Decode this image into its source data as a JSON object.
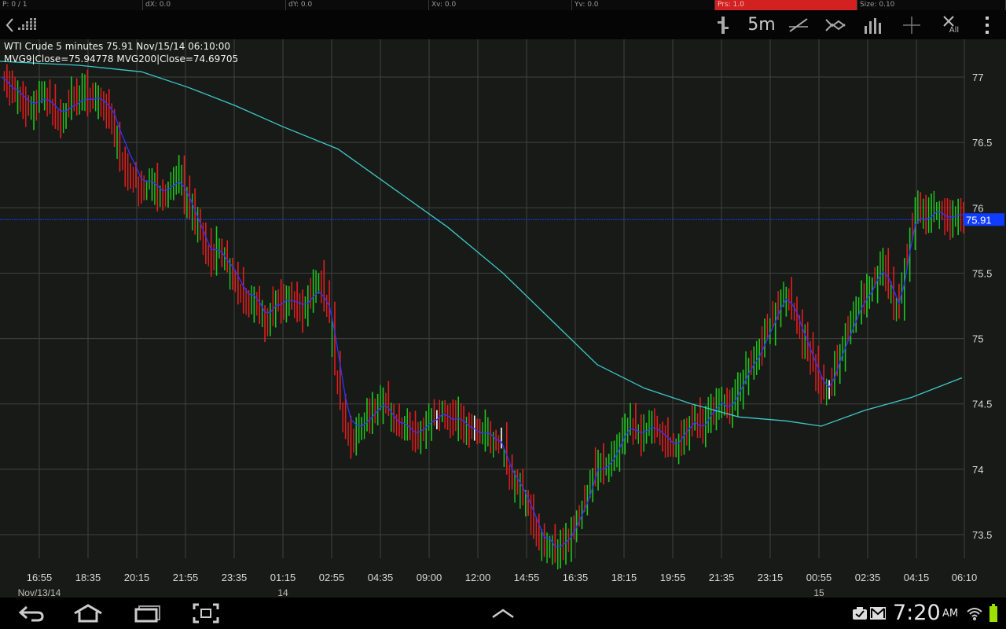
{
  "status_line": {
    "cells": [
      {
        "text": "P: 0 / 1",
        "highlight": false
      },
      {
        "text": "dX: 0.0",
        "highlight": false
      },
      {
        "text": "dY: 0.0",
        "highlight": false
      },
      {
        "text": "Xv: 0.0",
        "highlight": false
      },
      {
        "text": "Yv: 0.0",
        "highlight": false
      },
      {
        "text": "Prs: 1.0",
        "highlight": true
      },
      {
        "text": "Size: 0.10",
        "highlight": false
      }
    ]
  },
  "toolbar": {
    "timeframe_label": "5m",
    "all_label": "All",
    "icons": [
      "back-icon",
      "grid-logo-icon",
      "candle-type-icon",
      "trendline-icon",
      "cross-lines-icon",
      "volume-bars-icon",
      "crosshair-icon",
      "close-all-icon",
      "overflow-menu-icon"
    ]
  },
  "chart_info": {
    "line1": "WTI Crude 5 minutes 75.91 Nov/15/14 06:10:00",
    "line2": "MVG9|Close=75.94778 MVG200|Close=74.69705"
  },
  "chart_data": {
    "type": "line",
    "title": "WTI Crude 5 minutes 75.91 Nov/15/14 06:10:00",
    "y_ticks": [
      77,
      76.5,
      76,
      75.5,
      75,
      74.5,
      74,
      73.5
    ],
    "ylim": [
      73.3,
      77.3
    ],
    "x_ticks": [
      "16:55",
      "18:35",
      "20:15",
      "21:55",
      "23:35",
      "01:15",
      "02:55",
      "04:35",
      "09:00",
      "12:00",
      "14:55",
      "16:35",
      "18:15",
      "19:55",
      "21:35",
      "23:15",
      "00:55",
      "02:35",
      "04:15",
      "06:10"
    ],
    "date_labels": [
      {
        "text": "Nov/13/14",
        "at": "16:55"
      },
      {
        "text": "14",
        "at": "01:15"
      },
      {
        "text": "15",
        "at": "00:55"
      }
    ],
    "last_price": "75.91",
    "price_series": [
      77.0,
      76.95,
      76.85,
      76.9,
      76.8,
      76.75,
      76.8,
      76.85,
      76.9,
      76.8,
      76.7,
      76.65,
      76.75,
      76.85,
      76.8,
      76.9,
      76.85,
      76.8,
      76.85,
      76.75,
      76.7,
      76.6,
      76.4,
      76.3,
      76.25,
      76.2,
      76.1,
      76.15,
      76.25,
      76.1,
      76.05,
      76.15,
      76.2,
      76.3,
      76.1,
      76.0,
      75.9,
      75.8,
      75.7,
      75.6,
      75.7,
      75.65,
      75.55,
      75.5,
      75.4,
      75.3,
      75.25,
      75.35,
      75.2,
      75.1,
      75.2,
      75.3,
      75.25,
      75.35,
      75.3,
      75.25,
      75.2,
      75.3,
      75.4,
      75.45,
      75.3,
      75.2,
      74.8,
      74.5,
      74.3,
      74.2,
      74.3,
      74.35,
      74.4,
      74.45,
      74.5,
      74.55,
      74.45,
      74.35,
      74.3,
      74.35,
      74.3,
      74.25,
      74.3,
      74.35,
      74.4,
      74.4,
      74.45,
      74.4,
      74.35,
      74.4,
      74.35,
      74.3,
      74.3,
      74.25,
      74.3,
      74.25,
      74.2,
      74.2,
      74.0,
      73.9,
      73.85,
      73.8,
      73.7,
      73.6,
      73.5,
      73.4,
      73.45,
      73.35,
      73.4,
      73.45,
      73.5,
      73.6,
      73.7,
      73.8,
      73.95,
      74.1,
      74.0,
      74.05,
      74.1,
      74.2,
      74.3,
      74.35,
      74.3,
      74.25,
      74.3,
      74.35,
      74.3,
      74.25,
      74.2,
      74.15,
      74.2,
      74.3,
      74.35,
      74.4,
      74.3,
      74.35,
      74.45,
      74.5,
      74.55,
      74.45,
      74.5,
      74.6,
      74.7,
      74.8,
      74.85,
      74.9,
      75.0,
      75.1,
      75.2,
      75.3,
      75.35,
      75.25,
      75.15,
      75.0,
      74.9,
      74.8,
      74.7,
      74.6,
      74.6,
      74.75,
      74.9,
      75.0,
      75.1,
      75.2,
      75.3,
      75.35,
      75.4,
      75.5,
      75.55,
      75.45,
      75.3,
      75.2,
      75.5,
      75.8,
      76.0,
      75.95,
      75.9,
      75.95,
      76.0,
      75.95,
      75.9,
      75.92,
      75.94,
      75.91
    ],
    "mvg9_series": [
      77.0,
      76.97,
      76.92,
      76.9,
      76.86,
      76.82,
      76.8,
      76.81,
      76.83,
      76.82,
      76.78,
      76.74,
      76.74,
      76.77,
      76.79,
      76.82,
      76.83,
      76.83,
      76.84,
      76.82,
      76.78,
      76.72,
      76.6,
      76.5,
      76.4,
      76.32,
      76.22,
      76.2,
      76.2,
      76.17,
      76.13,
      76.14,
      76.17,
      76.2,
      76.16,
      76.08,
      75.98,
      75.88,
      75.78,
      75.68,
      75.68,
      75.66,
      75.6,
      75.55,
      75.48,
      75.4,
      75.34,
      75.33,
      75.28,
      75.2,
      75.2,
      75.25,
      75.26,
      75.29,
      75.29,
      75.28,
      75.26,
      75.27,
      75.32,
      75.36,
      75.32,
      75.25,
      75.05,
      74.8,
      74.55,
      74.38,
      74.34,
      74.33,
      74.36,
      74.4,
      74.45,
      74.49,
      74.47,
      74.41,
      74.36,
      74.35,
      74.32,
      74.28,
      74.29,
      74.32,
      74.36,
      74.38,
      74.42,
      74.41,
      74.38,
      74.39,
      74.37,
      74.33,
      74.31,
      74.28,
      74.28,
      74.27,
      74.23,
      74.21,
      74.11,
      74.0,
      73.93,
      73.86,
      73.78,
      73.68,
      73.58,
      73.48,
      73.47,
      73.41,
      73.41,
      73.44,
      73.48,
      73.56,
      73.65,
      73.74,
      73.86,
      74.0,
      74.0,
      74.03,
      74.08,
      74.16,
      74.25,
      74.31,
      74.3,
      74.28,
      74.29,
      74.32,
      74.31,
      74.28,
      74.24,
      74.2,
      74.2,
      74.26,
      74.31,
      74.36,
      74.33,
      74.34,
      74.41,
      74.46,
      74.51,
      74.48,
      74.49,
      74.56,
      74.64,
      74.73,
      74.8,
      74.86,
      74.95,
      75.04,
      75.13,
      75.23,
      75.3,
      75.27,
      75.2,
      75.08,
      74.98,
      74.87,
      74.77,
      74.67,
      74.63,
      74.7,
      74.82,
      74.93,
      75.03,
      75.13,
      75.23,
      75.3,
      75.36,
      75.45,
      75.51,
      75.47,
      75.37,
      75.27,
      75.42,
      75.66,
      75.87,
      75.92,
      75.91,
      75.93,
      75.97,
      75.96,
      75.93,
      75.93,
      75.94,
      75.95
    ],
    "mvg200_series": [
      [
        0,
        77.12
      ],
      [
        100,
        77.09
      ],
      [
        180,
        77.04
      ],
      [
        240,
        76.92
      ],
      [
        300,
        76.78
      ],
      [
        360,
        76.62
      ],
      [
        430,
        76.45
      ],
      [
        500,
        76.15
      ],
      [
        570,
        75.85
      ],
      [
        640,
        75.5
      ],
      [
        700,
        75.15
      ],
      [
        760,
        74.8
      ],
      [
        820,
        74.62
      ],
      [
        880,
        74.5
      ],
      [
        940,
        74.4
      ],
      [
        1000,
        74.37
      ],
      [
        1045,
        74.33
      ],
      [
        1100,
        74.45
      ],
      [
        1160,
        74.55
      ],
      [
        1224,
        74.7
      ]
    ],
    "xlabel": "",
    "ylabel": "",
    "grid": true,
    "legend": "none",
    "colors": {
      "up": "#1ec71e",
      "down": "#e31d1d",
      "mvg9": "#3232ff",
      "mvg200": "#3dc8c8",
      "price_marker": "#0f3cff",
      "grid": "#3f433d"
    }
  },
  "navbar": {
    "time": "7:20",
    "ampm": "AM",
    "icons": [
      "back-icon",
      "home-icon",
      "recent-apps-icon",
      "screenshot-icon",
      "up-arrow-icon",
      "notification-icon",
      "gmail-icon",
      "wifi-icon",
      "battery-icon"
    ]
  }
}
